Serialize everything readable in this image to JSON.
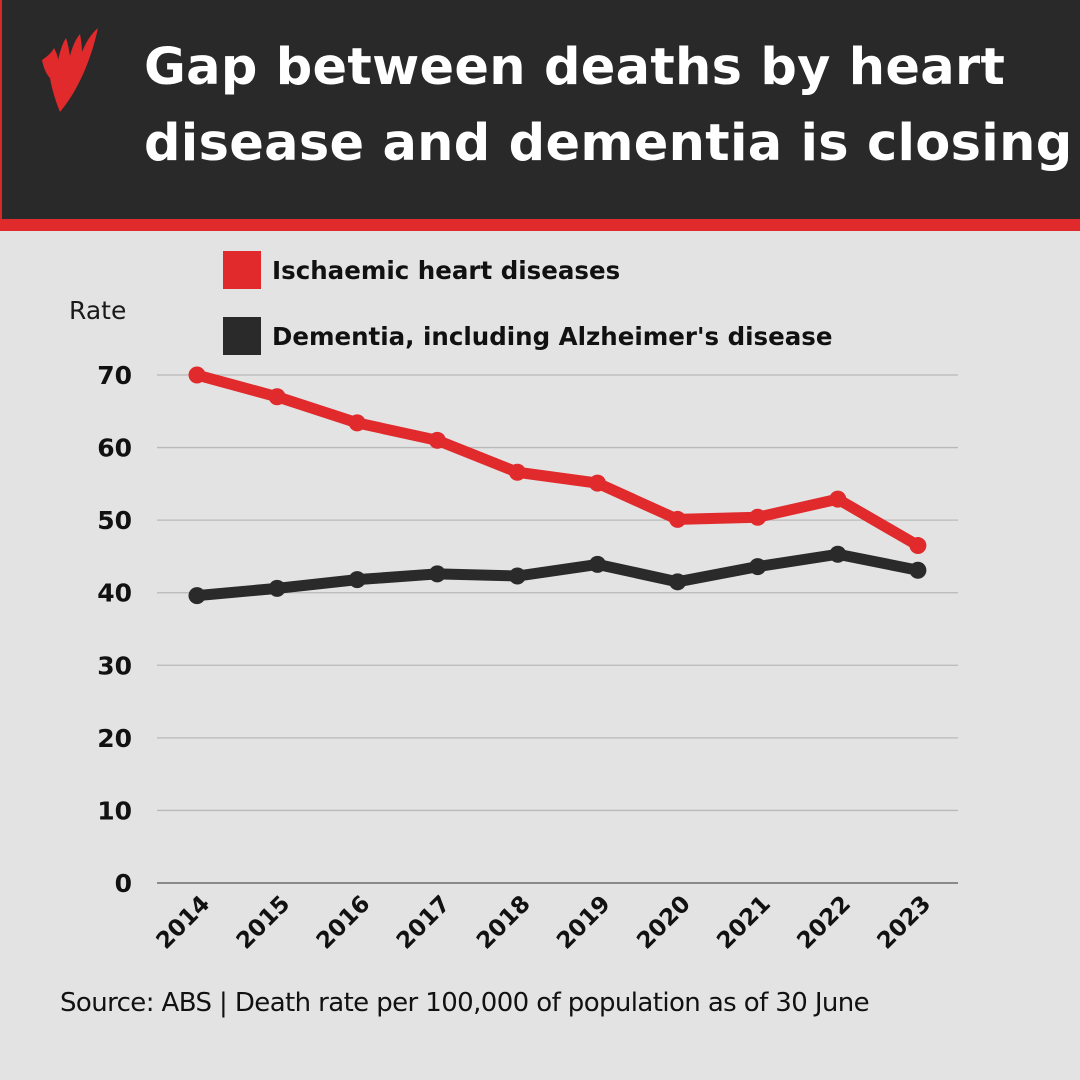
{
  "header": {
    "logo_icon": "sbs-logo-icon",
    "title_line1": "Gap between deaths by heart",
    "title_line2": "disease and dementia is closing"
  },
  "legend": {
    "items": [
      {
        "label": "Ischaemic heart diseases",
        "color": "#e02a2c"
      },
      {
        "label": "Dementia, including Alzheimer's disease",
        "color": "#2a2a2a"
      }
    ]
  },
  "axis": {
    "y_title": "Rate",
    "y_ticks": [
      "70",
      "60",
      "50",
      "40",
      "30",
      "20",
      "10",
      "0"
    ],
    "x_ticks": [
      "2014",
      "2015",
      "2016",
      "2017",
      "2018",
      "2019",
      "2020",
      "2021",
      "2022",
      "2023"
    ]
  },
  "footer": {
    "source": "Source: ABS | Death rate per 100,000 of population as of 30 June"
  },
  "colors": {
    "header_bg": "#292929",
    "accent_red": "#e02a2c",
    "page_bg": "#e3e3e3",
    "series_dark": "#2a2a2a"
  },
  "chart_data": {
    "type": "line",
    "title": "Gap between deaths by heart disease and dementia is closing",
    "xlabel": "",
    "ylabel": "Rate",
    "ylim": [
      0,
      70
    ],
    "yticks": [
      0,
      10,
      20,
      30,
      40,
      50,
      60,
      70
    ],
    "grid": true,
    "legend_position": "top",
    "categories": [
      "2014",
      "2015",
      "2016",
      "2017",
      "2018",
      "2019",
      "2020",
      "2021",
      "2022",
      "2023"
    ],
    "series": [
      {
        "name": "Ischaemic heart diseases",
        "color": "#e02a2c",
        "values": [
          70.0,
          67.0,
          63.4,
          61.0,
          56.6,
          55.1,
          50.1,
          50.4,
          52.9,
          46.5
        ]
      },
      {
        "name": "Dementia, including Alzheimer's disease",
        "color": "#2a2a2a",
        "values": [
          39.6,
          40.6,
          41.8,
          42.6,
          42.3,
          43.9,
          41.5,
          43.6,
          45.3,
          43.1
        ]
      }
    ],
    "annotation": "Source: ABS | Death rate per 100,000 of population as of 30 June"
  }
}
